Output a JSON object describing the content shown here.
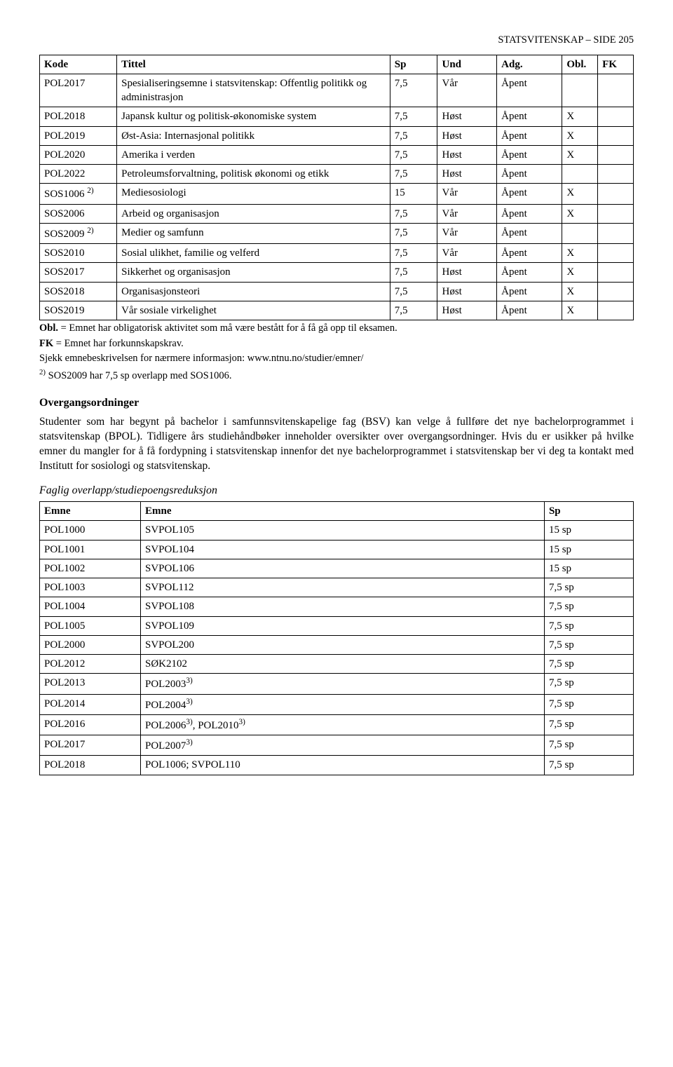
{
  "header": {
    "text": "STATSVITENSKAP – SIDE 205"
  },
  "courseTable": {
    "headers": {
      "kode": "Kode",
      "tittel": "Tittel",
      "sp": "Sp",
      "und": "Und",
      "adg": "Adg.",
      "obl": "Obl.",
      "fk": "FK"
    },
    "rows": [
      {
        "kode": "POL2017",
        "tittel": "Spesialiseringsemne i statsvitenskap: Offentlig politikk og administrasjon",
        "sp": "7,5",
        "und": "Vår",
        "adg": "Åpent",
        "obl": "",
        "fk": ""
      },
      {
        "kode": "POL2018",
        "tittel": "Japansk kultur og politisk-økonomiske system",
        "sp": "7,5",
        "und": "Høst",
        "adg": "Åpent",
        "obl": "X",
        "fk": ""
      },
      {
        "kode": "POL2019",
        "tittel": "Øst-Asia: Internasjonal politikk",
        "sp": "7,5",
        "und": "Høst",
        "adg": "Åpent",
        "obl": "X",
        "fk": ""
      },
      {
        "kode": "POL2020",
        "tittel": "Amerika i verden",
        "sp": "7,5",
        "und": "Høst",
        "adg": "Åpent",
        "obl": "X",
        "fk": ""
      },
      {
        "kode": "POL2022",
        "tittel": "Petroleumsforvaltning, politisk økonomi og etikk",
        "sp": "7,5",
        "und": "Høst",
        "adg": "Åpent",
        "obl": "",
        "fk": ""
      },
      {
        "kode": "SOS1006",
        "sup": "2)",
        "tittel": "Mediesosiologi",
        "sp": "15",
        "und": "Vår",
        "adg": "Åpent",
        "obl": "X",
        "fk": ""
      },
      {
        "kode": "SOS2006",
        "tittel": "Arbeid og organisasjon",
        "sp": "7,5",
        "und": "Vår",
        "adg": "Åpent",
        "obl": "X",
        "fk": ""
      },
      {
        "kode": "SOS2009",
        "sup": "2)",
        "tittel": "Medier og samfunn",
        "sp": "7,5",
        "und": "Vår",
        "adg": "Åpent",
        "obl": "",
        "fk": ""
      },
      {
        "kode": "SOS2010",
        "tittel": "Sosial ulikhet, familie og velferd",
        "sp": "7,5",
        "und": "Vår",
        "adg": "Åpent",
        "obl": "X",
        "fk": ""
      },
      {
        "kode": "SOS2017",
        "tittel": "Sikkerhet og organisasjon",
        "sp": "7,5",
        "und": "Høst",
        "adg": "Åpent",
        "obl": "X",
        "fk": ""
      },
      {
        "kode": "SOS2018",
        "tittel": "Organisasjonsteori",
        "sp": "7,5",
        "und": "Høst",
        "adg": "Åpent",
        "obl": "X",
        "fk": ""
      },
      {
        "kode": "SOS2019",
        "tittel": "Vår sosiale virkelighet",
        "sp": "7,5",
        "und": "Høst",
        "adg": "Åpent",
        "obl": "X",
        "fk": ""
      }
    ]
  },
  "notes": {
    "oblLabel": "Obl.",
    "oblText": " = Emnet har obligatorisk aktivitet som må være bestått for å få gå opp til eksamen.",
    "fkLabel": "FK",
    "fkText": " = Emnet har forkunnskapskrav.",
    "sjekk": "Sjekk emnebeskrivelsen for nærmere informasjon: www.ntnu.no/studier/emner/",
    "fn2Sup": "2)",
    "fn2": " SOS2009 har 7,5 sp overlapp med SOS1006."
  },
  "overgang": {
    "heading": "Overgangsordninger",
    "para": "Studenter som har begynt på bachelor i samfunnsvitenskapelige fag (BSV) kan velge å fullføre det nye bachelorprogrammet i statsvitenskap (BPOL). Tidligere års studiehåndbøker inneholder oversikter over overgangsordninger. Hvis du er usikker på hvilke emner du mangler for å få fordypning i statsvitenskap innenfor det nye bachelorprogrammet i statsvitenskap ber vi deg ta kontakt med Institutt for sosiologi og statsvitenskap."
  },
  "overlap": {
    "subheading": "Faglig overlapp/studiepoengsreduksjon",
    "headers": {
      "emne1": "Emne",
      "emne2": "Emne",
      "sp": "Sp"
    },
    "rows": [
      {
        "emne1": "POL1000",
        "emne2": "SVPOL105",
        "sp": "15 sp"
      },
      {
        "emne1": "POL1001",
        "emne2": "SVPOL104",
        "sp": "15 sp"
      },
      {
        "emne1": "POL1002",
        "emne2": "SVPOL106",
        "sp": "15 sp"
      },
      {
        "emne1": "POL1003",
        "emne2": "SVPOL112",
        "sp": "7,5 sp"
      },
      {
        "emne1": "POL1004",
        "emne2": "SVPOL108",
        "sp": "7,5 sp"
      },
      {
        "emne1": "POL1005",
        "emne2": "SVPOL109",
        "sp": "7,5 sp"
      },
      {
        "emne1": "POL2000",
        "emne2": "SVPOL200",
        "sp": "7,5 sp"
      },
      {
        "emne1": "POL2012",
        "emne2": "SØK2102",
        "sp": "7,5 sp"
      },
      {
        "emne1": "POL2013",
        "emne2": "POL2003",
        "sup2": "3)",
        "sp": "7,5 sp"
      },
      {
        "emne1": "POL2014",
        "emne2": "POL2004",
        "sup2": "3)",
        "sp": "7,5 sp"
      },
      {
        "emne1": "POL2016",
        "emne2_parts": [
          {
            "text": "POL2006",
            "sup": "3)"
          },
          {
            "text": ", POL2010",
            "sup": "3)"
          }
        ],
        "sp": "7,5 sp"
      },
      {
        "emne1": "POL2017",
        "emne2": "POL2007",
        "sup2": "3)",
        "sp": "7,5 sp"
      },
      {
        "emne1": "POL2018",
        "emne2": "POL1006; SVPOL110",
        "sp": "7,5 sp"
      }
    ]
  }
}
